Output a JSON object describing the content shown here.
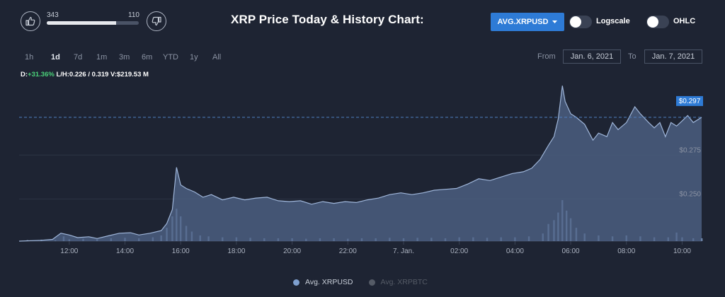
{
  "header": {
    "title": "XRP Price Today & History Chart:",
    "pair_button": "AVG.XRPUSD",
    "toggles": [
      {
        "label": "Logscale",
        "on": false
      },
      {
        "label": "OHLC",
        "on": false
      }
    ]
  },
  "votes": {
    "up": "343",
    "down": "110",
    "up_fraction": 0.757
  },
  "ranges": [
    "1h",
    "1d",
    "7d",
    "1m",
    "3m",
    "6m",
    "YTD",
    "1y",
    "All"
  ],
  "active_range": "1d",
  "date_range": {
    "from_label": "From",
    "from_value": "Jan. 6, 2021",
    "to_label": "To",
    "to_value": "Jan. 7, 2021"
  },
  "stats": {
    "d_label": "D:",
    "d_value": "+31.36%",
    "lh_label": "L/H:",
    "lh_value": "0.226 / 0.319",
    "v_label": "V:",
    "v_value": "$219.53 M"
  },
  "chart_data": {
    "type": "area",
    "x_tick_labels": [
      "12:00",
      "14:00",
      "16:00",
      "18:00",
      "20:00",
      "22:00",
      "7. Jan.",
      "02:00",
      "04:00",
      "06:00",
      "08:00",
      "10:00"
    ],
    "x_tick_hours": [
      12,
      14,
      16,
      18,
      20,
      22,
      24,
      26,
      28,
      30,
      32,
      34
    ],
    "x_range_hours": [
      10.2,
      34.7
    ],
    "y_ticks": [
      0.25,
      0.275
    ],
    "y_tick_labels": [
      "$0.250",
      "$0.275"
    ],
    "y_range": [
      0.226,
      0.319
    ],
    "current_price_label": "$0.297",
    "current_price": 0.2965,
    "grid": true,
    "series": [
      {
        "name": "Avg. XRPUSD",
        "color": "#7fa0cf",
        "points": [
          [
            10.2,
            0.226
          ],
          [
            11.0,
            0.2265
          ],
          [
            11.4,
            0.227
          ],
          [
            11.7,
            0.2305
          ],
          [
            12.0,
            0.2295
          ],
          [
            12.3,
            0.228
          ],
          [
            12.7,
            0.2285
          ],
          [
            13.0,
            0.2275
          ],
          [
            13.4,
            0.229
          ],
          [
            13.8,
            0.2305
          ],
          [
            14.2,
            0.2308
          ],
          [
            14.5,
            0.2295
          ],
          [
            14.9,
            0.2305
          ],
          [
            15.3,
            0.232
          ],
          [
            15.5,
            0.236
          ],
          [
            15.7,
            0.244
          ],
          [
            15.85,
            0.268
          ],
          [
            16.0,
            0.258
          ],
          [
            16.2,
            0.256
          ],
          [
            16.5,
            0.254
          ],
          [
            16.8,
            0.251
          ],
          [
            17.1,
            0.2525
          ],
          [
            17.5,
            0.2495
          ],
          [
            17.9,
            0.251
          ],
          [
            18.3,
            0.2495
          ],
          [
            18.7,
            0.2505
          ],
          [
            19.1,
            0.251
          ],
          [
            19.5,
            0.249
          ],
          [
            19.9,
            0.2485
          ],
          [
            20.3,
            0.249
          ],
          [
            20.7,
            0.247
          ],
          [
            21.1,
            0.2485
          ],
          [
            21.5,
            0.2475
          ],
          [
            21.9,
            0.2485
          ],
          [
            22.3,
            0.248
          ],
          [
            22.7,
            0.2495
          ],
          [
            23.1,
            0.2505
          ],
          [
            23.5,
            0.2525
          ],
          [
            23.9,
            0.2535
          ],
          [
            24.3,
            0.2525
          ],
          [
            24.7,
            0.2535
          ],
          [
            25.1,
            0.255
          ],
          [
            25.5,
            0.2555
          ],
          [
            25.9,
            0.256
          ],
          [
            26.3,
            0.2585
          ],
          [
            26.7,
            0.2615
          ],
          [
            27.1,
            0.2605
          ],
          [
            27.5,
            0.2625
          ],
          [
            27.9,
            0.2645
          ],
          [
            28.3,
            0.2655
          ],
          [
            28.6,
            0.2675
          ],
          [
            28.9,
            0.2725
          ],
          [
            29.2,
            0.2805
          ],
          [
            29.4,
            0.2855
          ],
          [
            29.55,
            0.2955
          ],
          [
            29.7,
            0.3145
          ],
          [
            29.8,
            0.3055
          ],
          [
            30.0,
            0.2985
          ],
          [
            30.2,
            0.2965
          ],
          [
            30.5,
            0.2925
          ],
          [
            30.8,
            0.2835
          ],
          [
            31.0,
            0.2875
          ],
          [
            31.3,
            0.2855
          ],
          [
            31.5,
            0.2935
          ],
          [
            31.7,
            0.2895
          ],
          [
            32.0,
            0.2935
          ],
          [
            32.3,
            0.3025
          ],
          [
            32.5,
            0.2985
          ],
          [
            32.8,
            0.2935
          ],
          [
            33.0,
            0.2905
          ],
          [
            33.2,
            0.2935
          ],
          [
            33.4,
            0.2855
          ],
          [
            33.6,
            0.2935
          ],
          [
            33.8,
            0.2915
          ],
          [
            34.0,
            0.2945
          ],
          [
            34.2,
            0.2975
          ],
          [
            34.4,
            0.2935
          ],
          [
            34.7,
            0.2965
          ]
        ]
      },
      {
        "name": "Avg. XRPBTC",
        "color": "#555b66",
        "visible": false
      }
    ],
    "volume_hours": [
      [
        10.5,
        1
      ],
      [
        11,
        1.5
      ],
      [
        11.5,
        1
      ],
      [
        11.8,
        5
      ],
      [
        12,
        2
      ],
      [
        12.5,
        2.5
      ],
      [
        13,
        2
      ],
      [
        13.5,
        3
      ],
      [
        14,
        3.5
      ],
      [
        14.5,
        3
      ],
      [
        15,
        4
      ],
      [
        15.3,
        6
      ],
      [
        15.5,
        14
      ],
      [
        15.7,
        26
      ],
      [
        15.85,
        34
      ],
      [
        16,
        26
      ],
      [
        16.2,
        16
      ],
      [
        16.4,
        10
      ],
      [
        16.7,
        6
      ],
      [
        17,
        5
      ],
      [
        17.5,
        4
      ],
      [
        18,
        4
      ],
      [
        18.5,
        3.5
      ],
      [
        19,
        3
      ],
      [
        19.5,
        3
      ],
      [
        20,
        3
      ],
      [
        20.5,
        2.5
      ],
      [
        21,
        3
      ],
      [
        21.5,
        3
      ],
      [
        22,
        2.5
      ],
      [
        22.5,
        3
      ],
      [
        23,
        3
      ],
      [
        23.5,
        3.5
      ],
      [
        24,
        3
      ],
      [
        24.5,
        3.5
      ],
      [
        25,
        3.5
      ],
      [
        25.5,
        3
      ],
      [
        26,
        4
      ],
      [
        26.5,
        4
      ],
      [
        27,
        3.5
      ],
      [
        27.5,
        4
      ],
      [
        28,
        4
      ],
      [
        28.5,
        5
      ],
      [
        29,
        8
      ],
      [
        29.2,
        18
      ],
      [
        29.4,
        22
      ],
      [
        29.55,
        30
      ],
      [
        29.7,
        43
      ],
      [
        29.85,
        32
      ],
      [
        30,
        24
      ],
      [
        30.2,
        14
      ],
      [
        30.5,
        8
      ],
      [
        31,
        6
      ],
      [
        31.5,
        5
      ],
      [
        32,
        6
      ],
      [
        32.5,
        5
      ],
      [
        33,
        4
      ],
      [
        33.5,
        4
      ],
      [
        33.8,
        9
      ],
      [
        34,
        4
      ],
      [
        34.4,
        3
      ],
      [
        34.7,
        3
      ]
    ]
  },
  "legend": [
    {
      "label": "Avg. XRPUSD",
      "color": "#7fa0cf",
      "active": true
    },
    {
      "label": "Avg. XRPBTC",
      "color": "#555b66",
      "active": false
    }
  ]
}
